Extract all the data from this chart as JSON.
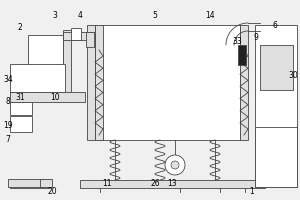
{
  "bg_color": "#f0f0f0",
  "line_color": "#444444",
  "fill_white": "#ffffff",
  "fill_light": "#e0e0e0",
  "fill_dark": "#888888",
  "fill_black": "#222222"
}
